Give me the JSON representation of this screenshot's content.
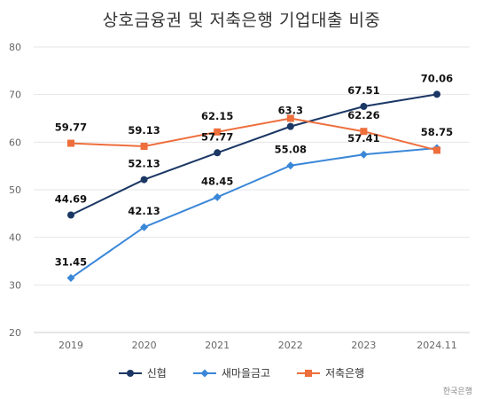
{
  "chart_data": {
    "type": "line",
    "title": "상호금융권 및 저축은행 기업대출 비중",
    "categories": [
      "2019",
      "2020",
      "2021",
      "2022",
      "2023",
      "2024.11"
    ],
    "ylim": [
      20,
      80
    ],
    "yticks": [
      "20",
      "30",
      "40",
      "50",
      "60",
      "70",
      "80"
    ],
    "grid": true,
    "legend_position": "bottom",
    "series": [
      {
        "name": "신협",
        "color": "#1b3764",
        "marker": "circle",
        "values": [
          44.69,
          52.13,
          57.77,
          63.3,
          67.51,
          70.06
        ],
        "labels": [
          "44.69",
          "52.13",
          "57.77",
          "63.3",
          "67.51",
          "70.06"
        ]
      },
      {
        "name": "새마을금고",
        "color": "#3a87d8",
        "marker": "diamond",
        "values": [
          31.45,
          42.13,
          48.45,
          55.08,
          57.41,
          58.75
        ],
        "labels": [
          "31.45",
          "42.13",
          "48.45",
          "55.08",
          "57.41",
          "58.75"
        ]
      },
      {
        "name": "저축은행",
        "color": "#ee6e3c",
        "marker": "square",
        "values": [
          59.77,
          59.13,
          62.15,
          65.0,
          62.26,
          58.3
        ],
        "labels": [
          "59.77",
          "59.13",
          "62.15",
          "",
          "62.26",
          ""
        ]
      }
    ],
    "source": "한국은행"
  }
}
